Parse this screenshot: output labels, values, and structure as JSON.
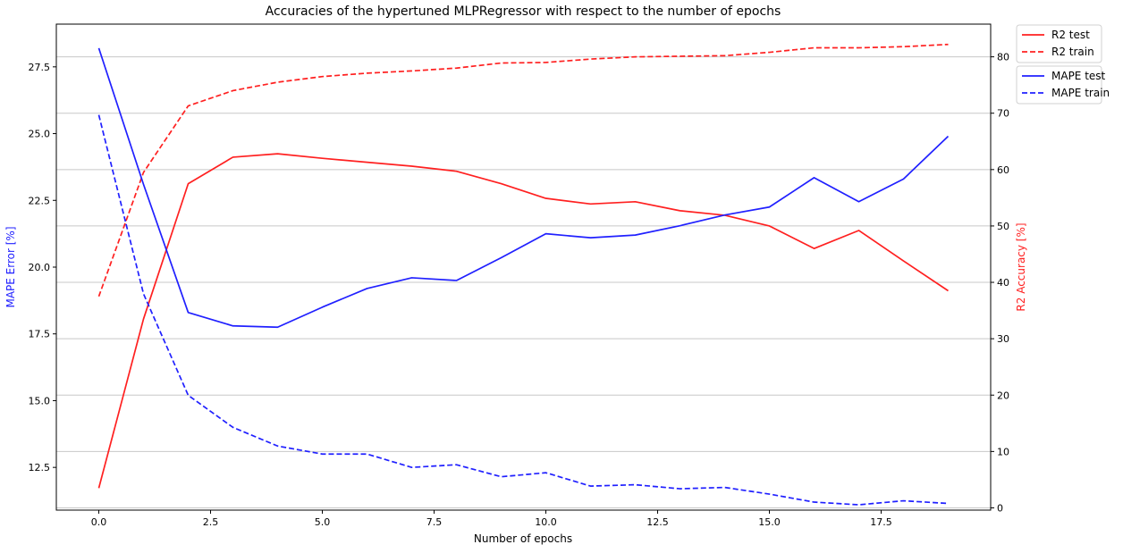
{
  "chart_data": {
    "type": "line",
    "title": "Accuracies of the hypertuned MLPRegressor with respect to the number of epochs",
    "xlabel": "Number of epochs",
    "ylabel_left": "MAPE Error [%]",
    "ylabel_right": "R2 Accuracy [%]",
    "x": [
      0,
      1,
      2,
      3,
      4,
      5,
      6,
      7,
      8,
      9,
      10,
      11,
      12,
      13,
      14,
      15,
      16,
      17,
      18,
      19
    ],
    "xlim": [
      -0.95,
      19.95
    ],
    "ylim_left": [
      10.9,
      29.1
    ],
    "ylim_right": [
      -0.4,
      85.8
    ],
    "xticks": [
      "0.0",
      "2.5",
      "5.0",
      "7.5",
      "10.0",
      "12.5",
      "15.0",
      "17.5"
    ],
    "yticks_left": [
      "12.5",
      "15.0",
      "17.5",
      "20.0",
      "22.5",
      "25.0",
      "27.5"
    ],
    "yticks_right": [
      "0",
      "10",
      "20",
      "30",
      "40",
      "50",
      "60",
      "70",
      "80"
    ],
    "grid": "horizontal (right axis)",
    "legend_position": "outside top-right",
    "colors": {
      "r2": "#ff2020",
      "mape": "#2020ff",
      "grid": "#c8c8c8"
    },
    "series": [
      {
        "name": "R2 test",
        "axis": "right",
        "style": "solid",
        "color": "#ff2020",
        "values": [
          3.5,
          33.5,
          57.5,
          62.2,
          62.8,
          62.0,
          61.3,
          60.6,
          59.7,
          57.5,
          54.9,
          53.9,
          54.3,
          52.7,
          51.9,
          50.0,
          46.0,
          49.2,
          43.8,
          38.5
        ]
      },
      {
        "name": "R2 train",
        "axis": "right",
        "style": "dashed",
        "color": "#ff2020",
        "values": [
          37.5,
          59.5,
          71.3,
          74.0,
          75.5,
          76.5,
          77.1,
          77.5,
          78.0,
          78.9,
          79.0,
          79.6,
          80.0,
          80.1,
          80.2,
          80.8,
          81.6,
          81.6,
          81.8,
          82.2
        ]
      },
      {
        "name": "MAPE test",
        "axis": "left",
        "style": "solid",
        "color": "#2020ff",
        "values": [
          28.2,
          23.1,
          18.3,
          17.8,
          17.75,
          18.5,
          19.2,
          19.6,
          19.5,
          20.35,
          21.25,
          21.1,
          21.2,
          21.55,
          21.95,
          22.25,
          23.35,
          22.45,
          23.3,
          24.9
        ]
      },
      {
        "name": "MAPE train",
        "axis": "left",
        "style": "dashed",
        "color": "#2020ff",
        "values": [
          25.7,
          19.0,
          15.2,
          14.0,
          13.3,
          13.0,
          13.0,
          12.5,
          12.6,
          12.15,
          12.3,
          11.8,
          11.85,
          11.7,
          11.75,
          11.5,
          11.2,
          11.1,
          11.25,
          11.15
        ]
      }
    ]
  }
}
